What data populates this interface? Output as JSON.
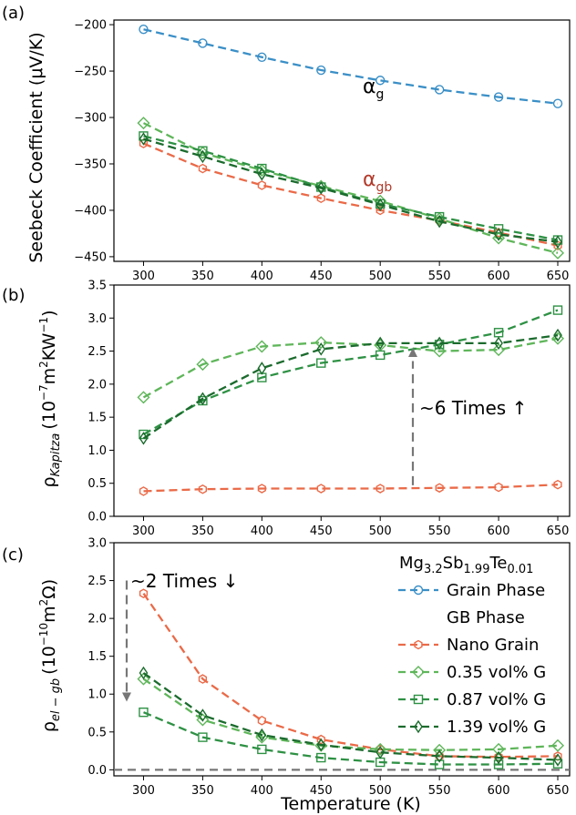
{
  "colors": {
    "grain": "#3a8fc7",
    "nano": "#ea6a48",
    "g035": "#5fb65a",
    "g087": "#2e9144",
    "g139": "#1b6b2d",
    "dashed_ref": "#777777",
    "axis": "#000000"
  },
  "xaxis": {
    "label": "Temperature (K)",
    "ticks": [
      "300",
      "350",
      "400",
      "450",
      "500",
      "550",
      "600",
      "650"
    ],
    "lim": [
      275,
      660
    ]
  },
  "legend": {
    "title_main": "Mg",
    "title_sub1": "3.2",
    "title_mid1": "Sb",
    "title_sub2": "1.99",
    "title_mid2": "Te",
    "title_sub3": "0.01",
    "entries": {
      "grain": "Grain Phase",
      "gb": "GB Phase",
      "nano": "Nano Grain",
      "g035": "0.35 vol% G",
      "g087": "0.87 vol% G",
      "g139": "1.39 vol% G"
    }
  },
  "chart_data": [
    {
      "type": "line",
      "panel": "(a)",
      "ylabel": "Seebeck Coefficient (μV/K)",
      "ylim": [
        -455,
        -195
      ],
      "yticks": [
        "-200",
        "-250",
        "-300",
        "-350",
        "-400",
        "-450"
      ],
      "x": [
        300,
        350,
        400,
        450,
        500,
        550,
        600,
        650
      ],
      "annotations": {
        "alpha_g": "α",
        "alpha_g_sub": "g",
        "alpha_gb": "α",
        "alpha_gb_sub": "gb"
      },
      "series": [
        {
          "key": "grain",
          "values": [
            -205,
            -220,
            -235,
            -249,
            -260,
            -270,
            -278,
            -285
          ]
        },
        {
          "key": "nano",
          "values": [
            -328,
            -355,
            -373,
            -387,
            -400,
            -411,
            -424,
            -438
          ]
        },
        {
          "key": "g035",
          "values": [
            -306,
            -338,
            -357,
            -374,
            -390,
            -409,
            -430,
            -446
          ]
        },
        {
          "key": "g087",
          "values": [
            -320,
            -336,
            -355,
            -375,
            -393,
            -407,
            -420,
            -432
          ]
        },
        {
          "key": "g139",
          "values": [
            -323,
            -342,
            -361,
            -376,
            -394,
            -412,
            -426,
            -434
          ]
        }
      ]
    },
    {
      "type": "line",
      "panel": "(b)",
      "ylabel_main": "ρ",
      "ylabel_sub": "Kapitza",
      "ylabel_units": "(10",
      "ylabel_exp1": "−7",
      "ylabel_units2": "m",
      "ylabel_exp2": "2",
      "ylabel_units3": "KW",
      "ylabel_exp3": "−1",
      "ylabel_units4": ")",
      "ylim": [
        0,
        3.5
      ],
      "yticks": [
        "0.0",
        "0.5",
        "1.0",
        "1.5",
        "2.0",
        "2.5",
        "3.0",
        "3.5"
      ],
      "x": [
        300,
        350,
        400,
        450,
        500,
        550,
        600,
        650
      ],
      "annotation": "~6 Times ↑",
      "series": [
        {
          "key": "nano",
          "values": [
            0.38,
            0.41,
            0.42,
            0.42,
            0.42,
            0.43,
            0.44,
            0.48
          ]
        },
        {
          "key": "g035",
          "values": [
            1.8,
            2.3,
            2.57,
            2.63,
            2.59,
            2.5,
            2.52,
            2.69
          ]
        },
        {
          "key": "g087",
          "values": [
            1.24,
            1.75,
            2.1,
            2.32,
            2.44,
            2.6,
            2.78,
            3.12
          ]
        },
        {
          "key": "g139",
          "values": [
            1.18,
            1.78,
            2.24,
            2.53,
            2.62,
            2.62,
            2.62,
            2.74
          ]
        }
      ]
    },
    {
      "type": "line",
      "panel": "(c)",
      "ylabel_main": "ρ",
      "ylabel_sub": "el − gb",
      "ylabel_units": "(10",
      "ylabel_exp1": "−10",
      "ylabel_units2": "m",
      "ylabel_exp2": "2",
      "ylabel_units3": "Ω)",
      "ylim": [
        -0.08,
        3.0
      ],
      "yticks": [
        "0.0",
        "0.5",
        "1.0",
        "1.5",
        "2.0",
        "2.5",
        "3.0"
      ],
      "x": [
        300,
        350,
        400,
        450,
        500,
        550,
        600,
        650
      ],
      "annotation": "~2 Times ↓",
      "series": [
        {
          "key": "nano",
          "values": [
            2.33,
            1.2,
            0.65,
            0.4,
            0.27,
            0.18,
            0.17,
            0.18
          ]
        },
        {
          "key": "g035",
          "values": [
            1.2,
            0.66,
            0.43,
            0.32,
            0.27,
            0.26,
            0.27,
            0.32
          ]
        },
        {
          "key": "g087",
          "values": [
            0.76,
            0.43,
            0.27,
            0.16,
            0.1,
            0.07,
            0.07,
            0.08
          ]
        },
        {
          "key": "g139",
          "values": [
            1.28,
            0.72,
            0.46,
            0.33,
            0.23,
            0.18,
            0.16,
            0.13
          ]
        }
      ]
    }
  ]
}
